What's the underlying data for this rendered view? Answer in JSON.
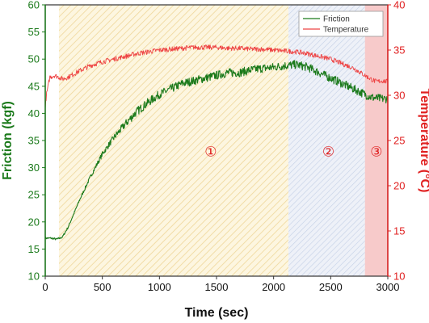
{
  "chart_data": {
    "type": "line",
    "xlabel": "Time (sec)",
    "ylabel_left": "Friction (kgf)",
    "ylabel_right": "Temperature (°C)",
    "xlim": [
      0,
      3000
    ],
    "ylim_left": [
      10,
      60
    ],
    "ylim_right": [
      10,
      40
    ],
    "x_ticks": [
      0,
      500,
      1000,
      1500,
      2000,
      2500,
      3000
    ],
    "y_ticks_left": [
      10,
      15,
      20,
      25,
      30,
      35,
      40,
      45,
      50,
      55,
      60
    ],
    "y_ticks_right": [
      10,
      15,
      20,
      25,
      30,
      35,
      40
    ],
    "legend": {
      "position": "top-right",
      "entries": [
        "Friction",
        "Temperature"
      ]
    },
    "series": [
      {
        "name": "Friction",
        "axis": "left",
        "color": "#1b7a1b",
        "x": [
          0,
          50,
          100,
          150,
          200,
          250,
          300,
          400,
          500,
          600,
          700,
          800,
          900,
          1000,
          1100,
          1200,
          1300,
          1400,
          1500,
          1600,
          1700,
          1800,
          1900,
          2000,
          2100,
          2200,
          2300,
          2400,
          2500,
          2600,
          2700,
          2800,
          2850,
          2900,
          2950,
          3000
        ],
        "values": [
          17,
          17,
          16.8,
          17.2,
          19,
          21.5,
          24,
          28.5,
          32.5,
          35.5,
          38,
          40.3,
          42,
          43.5,
          44.5,
          45.5,
          46,
          46.5,
          47,
          47.5,
          47.5,
          48,
          48.3,
          48.5,
          48.8,
          49,
          48.5,
          47.5,
          46.5,
          45.5,
          44.5,
          43.5,
          43,
          42.8,
          42.7,
          42.7
        ]
      },
      {
        "name": "Temperature",
        "axis": "right",
        "color": "#ee4444",
        "x": [
          0,
          10,
          40,
          80,
          120,
          150,
          200,
          300,
          400,
          500,
          600,
          700,
          800,
          900,
          1000,
          1100,
          1200,
          1300,
          1400,
          1500,
          1600,
          1700,
          1800,
          1900,
          2000,
          2100,
          2200,
          2300,
          2400,
          2500,
          2600,
          2700,
          2800,
          2850,
          2900,
          2950,
          3000
        ],
        "values": [
          28.5,
          30,
          32,
          32.2,
          32,
          31.8,
          32,
          32.7,
          33.3,
          33.7,
          34,
          34.3,
          34.6,
          34.8,
          35,
          35.1,
          35.2,
          35.3,
          35.3,
          35.3,
          35.2,
          35.2,
          35.1,
          35.1,
          35,
          34.9,
          34.8,
          34.6,
          34.3,
          34,
          33.5,
          33,
          32.2,
          31.8,
          31.5,
          31.6,
          31.5
        ]
      }
    ],
    "regions": [
      {
        "label": "①",
        "x_start": 120,
        "x_end": 2130,
        "color": "#f5e0a0",
        "label_x": 1450,
        "label_y": 33
      },
      {
        "label": "②",
        "x_start": 2130,
        "x_end": 2800,
        "color": "#c8d4ea",
        "label_x": 2480,
        "label_y": 33
      },
      {
        "label": "③",
        "x_start": 2800,
        "x_end": 3000,
        "color": "#f4b8b8",
        "label_x": 2900,
        "label_y": 33
      }
    ],
    "colors": {
      "left_axis": "#1b7a1b",
      "right_axis": "#e02020",
      "region_label": "#e02020"
    }
  }
}
